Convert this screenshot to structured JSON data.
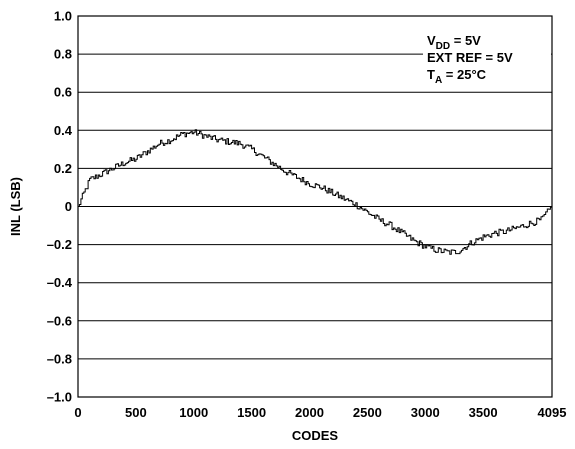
{
  "chart_data": {
    "type": "line",
    "title": "",
    "xlabel": "CODES",
    "ylabel": "INL (LSB)",
    "xlim": [
      0,
      4095
    ],
    "ylim": [
      -1.0,
      1.0
    ],
    "x_ticks": [
      0,
      500,
      1000,
      1500,
      2000,
      2500,
      3000,
      3500,
      4095
    ],
    "x_tick_labels": [
      "0",
      "500",
      "1000",
      "1500",
      "2000",
      "2500",
      "3000",
      "3500",
      "4095"
    ],
    "y_ticks": [
      1.0,
      0.8,
      0.6,
      0.4,
      0.2,
      0,
      -0.2,
      -0.4,
      -0.6,
      -0.8,
      -1.0
    ],
    "y_tick_labels": [
      "1.0",
      "0.8",
      "0.6",
      "0.4",
      "0.2",
      "0",
      "–0.2",
      "–0.4",
      "–0.6",
      "–0.8",
      "–1.0"
    ],
    "grid": "horizontal",
    "annotations": {
      "vdd_main": "V",
      "vdd_sub": "DD",
      "vdd_rest": " = 5V",
      "ext_ref": "EXT REF = 5V",
      "ta_main": "T",
      "ta_sub": "A",
      "ta_rest": " = 25°C"
    },
    "series": [
      {
        "x": [
          0,
          100,
          200,
          300,
          400,
          500,
          600,
          700,
          800,
          900,
          1000,
          1100,
          1200,
          1300,
          1400,
          1500,
          1600,
          1700,
          1800,
          1900,
          2000,
          2100,
          2200,
          2300,
          2400,
          2500,
          2600,
          2700,
          2800,
          2900,
          3000,
          3100,
          3200,
          3250,
          3300,
          3400,
          3500,
          3600,
          3700,
          3800,
          3900,
          4000,
          4095
        ],
        "y": [
          0.0,
          0.14,
          0.17,
          0.2,
          0.23,
          0.25,
          0.29,
          0.33,
          0.35,
          0.38,
          0.39,
          0.37,
          0.35,
          0.34,
          0.33,
          0.3,
          0.26,
          0.22,
          0.18,
          0.15,
          0.12,
          0.1,
          0.07,
          0.04,
          0.01,
          -0.03,
          -0.07,
          -0.1,
          -0.14,
          -0.18,
          -0.21,
          -0.23,
          -0.24,
          -0.24,
          -0.23,
          -0.19,
          -0.16,
          -0.14,
          -0.13,
          -0.11,
          -0.09,
          -0.07,
          0.0
        ]
      }
    ]
  }
}
